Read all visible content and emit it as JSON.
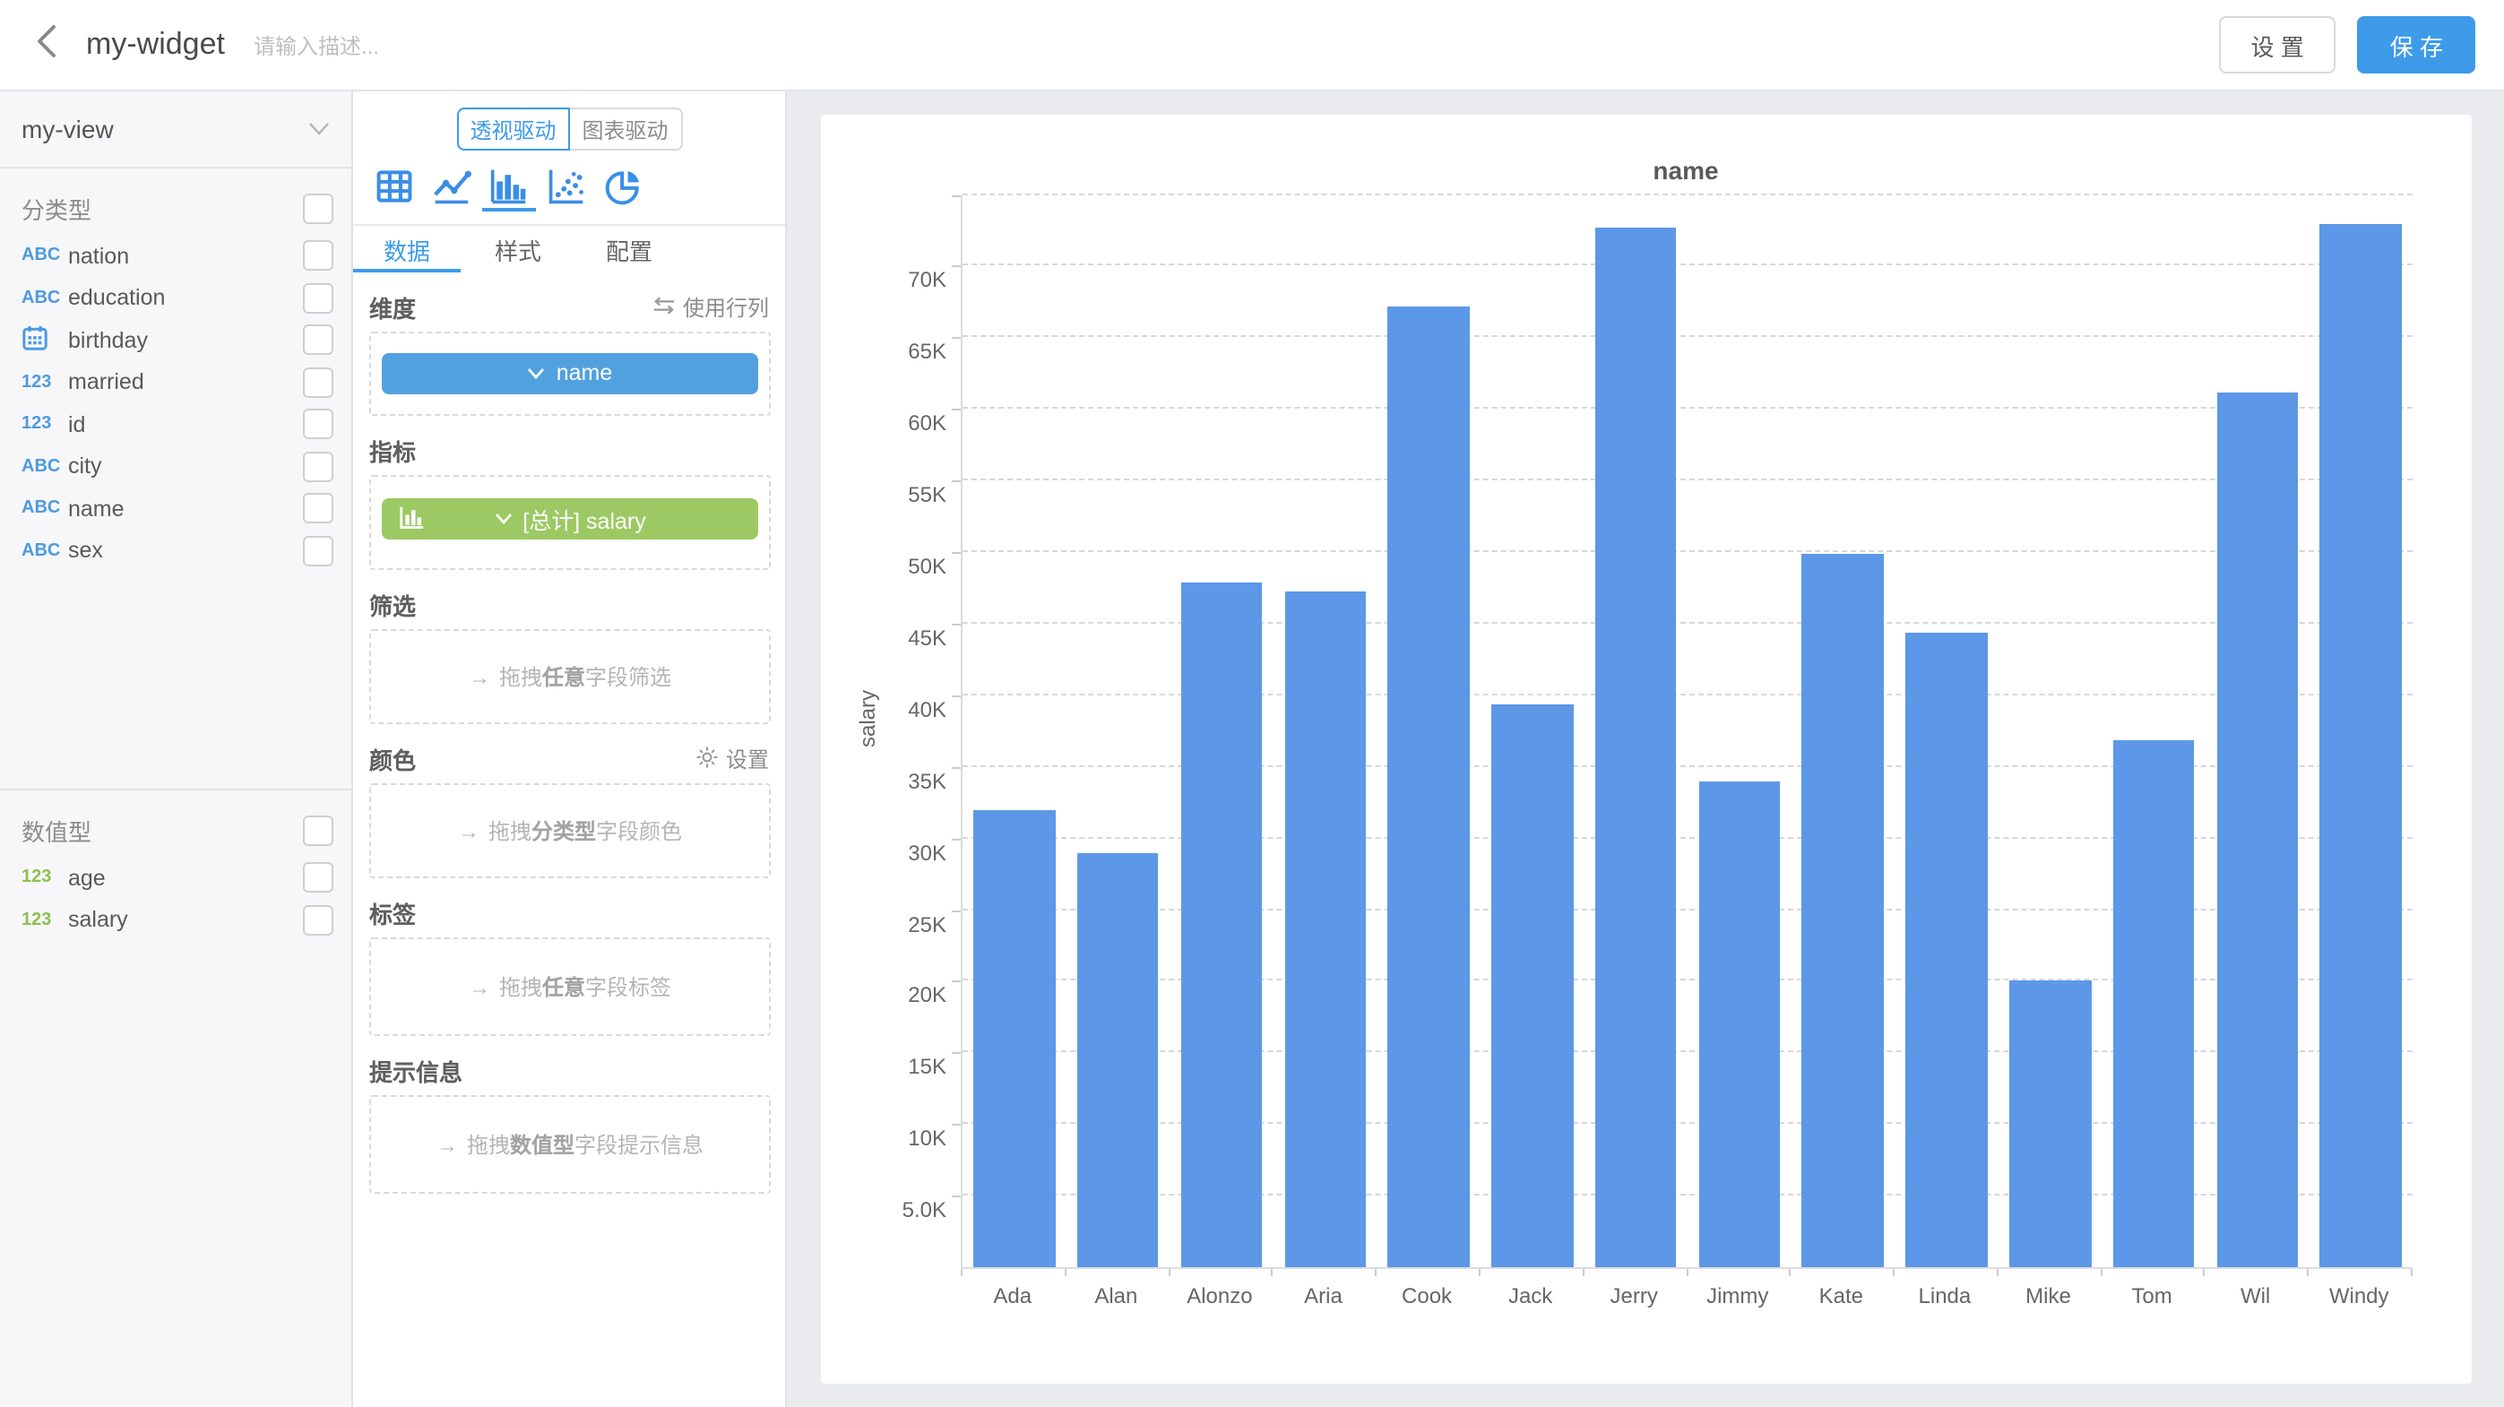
{
  "colors": {
    "accent": "#3d9be9",
    "bar": "#5d97e8",
    "pill_dimension": "#52a1df",
    "pill_metric": "#9cc963",
    "icon_categorical": "#4d9adf",
    "icon_numeric": "#8cbf4d"
  },
  "header": {
    "title": "my-widget",
    "description_placeholder": "请输入描述...",
    "settings_label": "设 置",
    "save_label": "保 存"
  },
  "sidebar": {
    "view_name": "my-view",
    "categorical_label": "分类型",
    "numeric_label": "数值型",
    "categorical_fields": [
      {
        "name": "nation",
        "type": "string"
      },
      {
        "name": "education",
        "type": "string"
      },
      {
        "name": "birthday",
        "type": "date"
      },
      {
        "name": "married",
        "type": "number"
      },
      {
        "name": "id",
        "type": "number"
      },
      {
        "name": "city",
        "type": "string"
      },
      {
        "name": "name",
        "type": "string"
      },
      {
        "name": "sex",
        "type": "string"
      }
    ],
    "numeric_fields": [
      {
        "name": "age",
        "type": "number"
      },
      {
        "name": "salary",
        "type": "number"
      }
    ]
  },
  "panel": {
    "mode_tabs": [
      {
        "label": "透视驱动",
        "active": true
      },
      {
        "label": "图表驱动",
        "active": false
      }
    ],
    "chart_types": [
      {
        "name": "table"
      },
      {
        "name": "line"
      },
      {
        "name": "bar",
        "active": true
      },
      {
        "name": "scatter"
      },
      {
        "name": "pie"
      }
    ],
    "tabs": [
      {
        "label": "数据",
        "active": true
      },
      {
        "label": "样式",
        "active": false
      },
      {
        "label": "配置",
        "active": false
      }
    ],
    "dimension": {
      "label": "维度",
      "action": "使用行列",
      "pill": "name"
    },
    "metric": {
      "label": "指标",
      "pill": "[总计] salary"
    },
    "filter": {
      "label": "筛选",
      "drop_prefix": "拖拽",
      "drop_em": "任意",
      "drop_suffix": "字段筛选"
    },
    "color": {
      "label": "颜色",
      "action": "设置",
      "drop_prefix": "拖拽",
      "drop_em": "分类型",
      "drop_suffix": "字段颜色"
    },
    "label": {
      "label": "标签",
      "drop_prefix": "拖拽",
      "drop_em": "任意",
      "drop_suffix": "字段标签"
    },
    "tooltip": {
      "label": "提示信息",
      "drop_prefix": "拖拽",
      "drop_em": "数值型",
      "drop_suffix": "字段提示信息"
    }
  },
  "chart_data": {
    "type": "bar",
    "title": "name",
    "xlabel": "",
    "ylabel": "salary",
    "categories": [
      "Ada",
      "Alan",
      "Alonzo",
      "Aria",
      "Cook",
      "Jack",
      "Jerry",
      "Jimmy",
      "Kate",
      "Linda",
      "Mike",
      "Tom",
      "Wil",
      "Windy"
    ],
    "values": [
      31900,
      28900,
      47900,
      47200,
      67200,
      39300,
      72700,
      33900,
      49900,
      44400,
      20100,
      36900,
      61100,
      72900
    ],
    "ylim": [
      0,
      75000
    ],
    "ytick_interval": 5000,
    "ytick_labels": [
      "5.0K",
      "10K",
      "15K",
      "20K",
      "25K",
      "30K",
      "35K",
      "40K",
      "45K",
      "50K",
      "55K",
      "60K",
      "65K",
      "70K"
    ],
    "grid": "horizontal dashed",
    "legend_position": "none",
    "bar_color": "#5d97e8"
  }
}
